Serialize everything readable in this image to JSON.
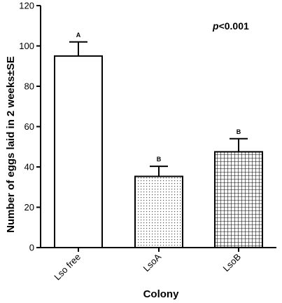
{
  "chart_data": {
    "type": "bar",
    "categories": [
      "Lso free",
      "LsoA",
      "LsoB"
    ],
    "values": [
      95,
      35.3,
      47.5
    ],
    "errors": [
      7,
      5,
      6.5
    ],
    "significance_letters": [
      "A",
      "B",
      "B"
    ],
    "patterns": [
      "none",
      "dots",
      "grid"
    ],
    "xlabel": "Colony",
    "ylabel": "Number of eggs laid in 2 weeks±SE",
    "ylim": [
      0,
      120
    ],
    "yticks": [
      0,
      20,
      40,
      60,
      80,
      100,
      120
    ],
    "annotation": {
      "italic": "p",
      "rest": "<0.001"
    },
    "grid": false,
    "legend": "none"
  }
}
